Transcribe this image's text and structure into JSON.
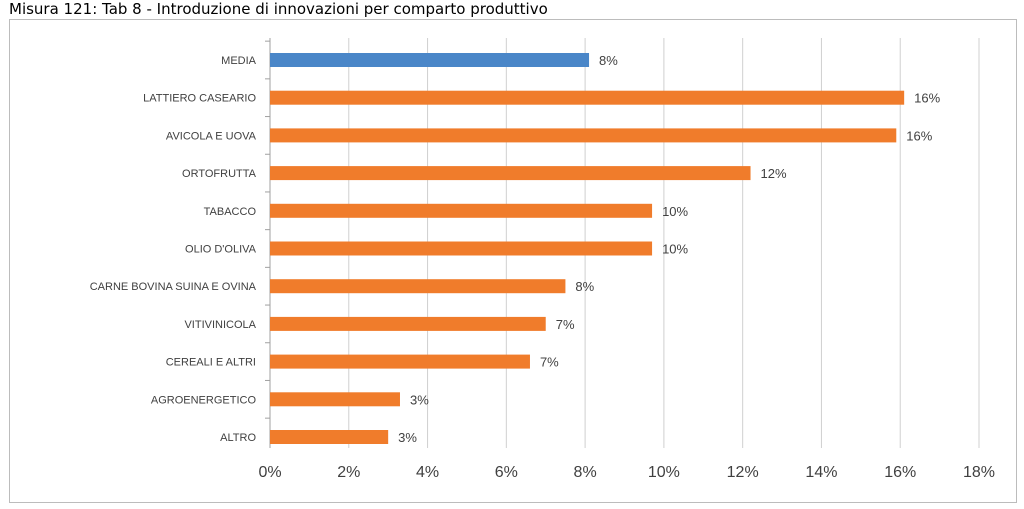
{
  "title": "Misura 121: Tab 8 - Introduzione di innovazioni per comparto produttivo",
  "colors": {
    "media_bar": "#4a86c8",
    "sector_bar": "#f07c2b",
    "gridline": "#d0d0d0",
    "axis": "#a0a0a0",
    "text": "#404040"
  },
  "chart_data": {
    "type": "bar",
    "orientation": "horizontal",
    "categories": [
      "MEDIA",
      "LATTIERO CASEARIO",
      "AVICOLA E UOVA",
      "ORTOFRUTTA",
      "TABACCO",
      "OLIO D'OLIVA",
      "CARNE BOVINA SUINA E OVINA",
      "VITIVINICOLA",
      "CEREALI E ALTRI",
      "AGROENERGETICO",
      "ALTRO"
    ],
    "values": [
      8.1,
      16.1,
      15.9,
      12.2,
      9.7,
      9.7,
      7.5,
      7.0,
      6.6,
      3.3,
      3.0
    ],
    "value_labels": [
      "8%",
      "16%",
      "16%",
      "12%",
      "10%",
      "10%",
      "8%",
      "7%",
      "7%",
      "3%",
      "3%"
    ],
    "highlighted": [
      "MEDIA"
    ],
    "xlim": [
      0,
      18
    ],
    "xticks": [
      0,
      2,
      4,
      6,
      8,
      10,
      12,
      14,
      16,
      18
    ],
    "xtick_labels": [
      "0%",
      "2%",
      "4%",
      "6%",
      "8%",
      "10%",
      "12%",
      "14%",
      "16%",
      "18%"
    ],
    "grid": true,
    "legend": "none"
  }
}
